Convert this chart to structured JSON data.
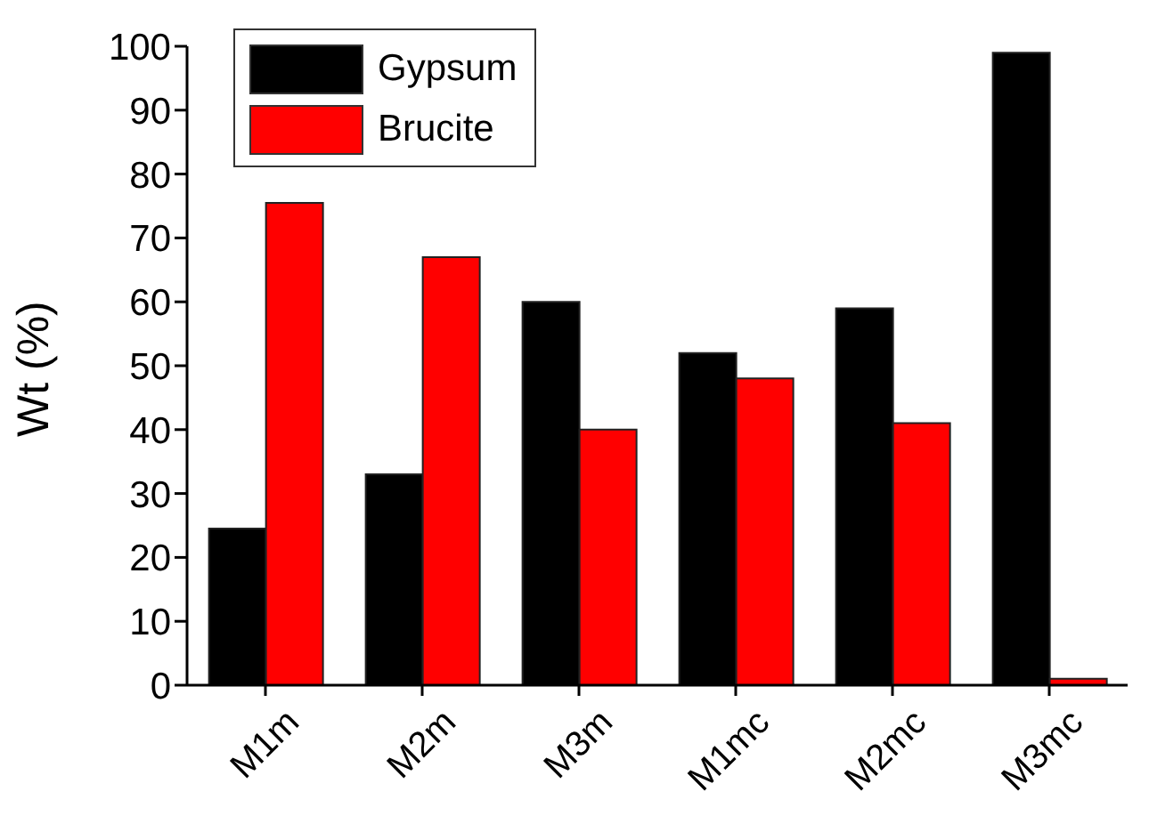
{
  "chart_data": {
    "type": "bar",
    "ylabel": "Wt (%)",
    "categories": [
      "M1m",
      "M2m",
      "M3m",
      "M1mc",
      "M2mc",
      "M3mc"
    ],
    "series": [
      {
        "name": "Gypsum",
        "color": "#000000",
        "values": [
          24.5,
          33,
          60,
          52,
          59,
          99
        ]
      },
      {
        "name": "Brucite",
        "color": "#ff0000",
        "values": [
          75.5,
          67,
          40,
          48,
          41,
          1
        ]
      }
    ],
    "ylim": [
      0,
      100
    ],
    "yticks": [
      0,
      10,
      20,
      30,
      40,
      50,
      60,
      70,
      80,
      90,
      100
    ],
    "legend": "top left",
    "grid": false
  }
}
